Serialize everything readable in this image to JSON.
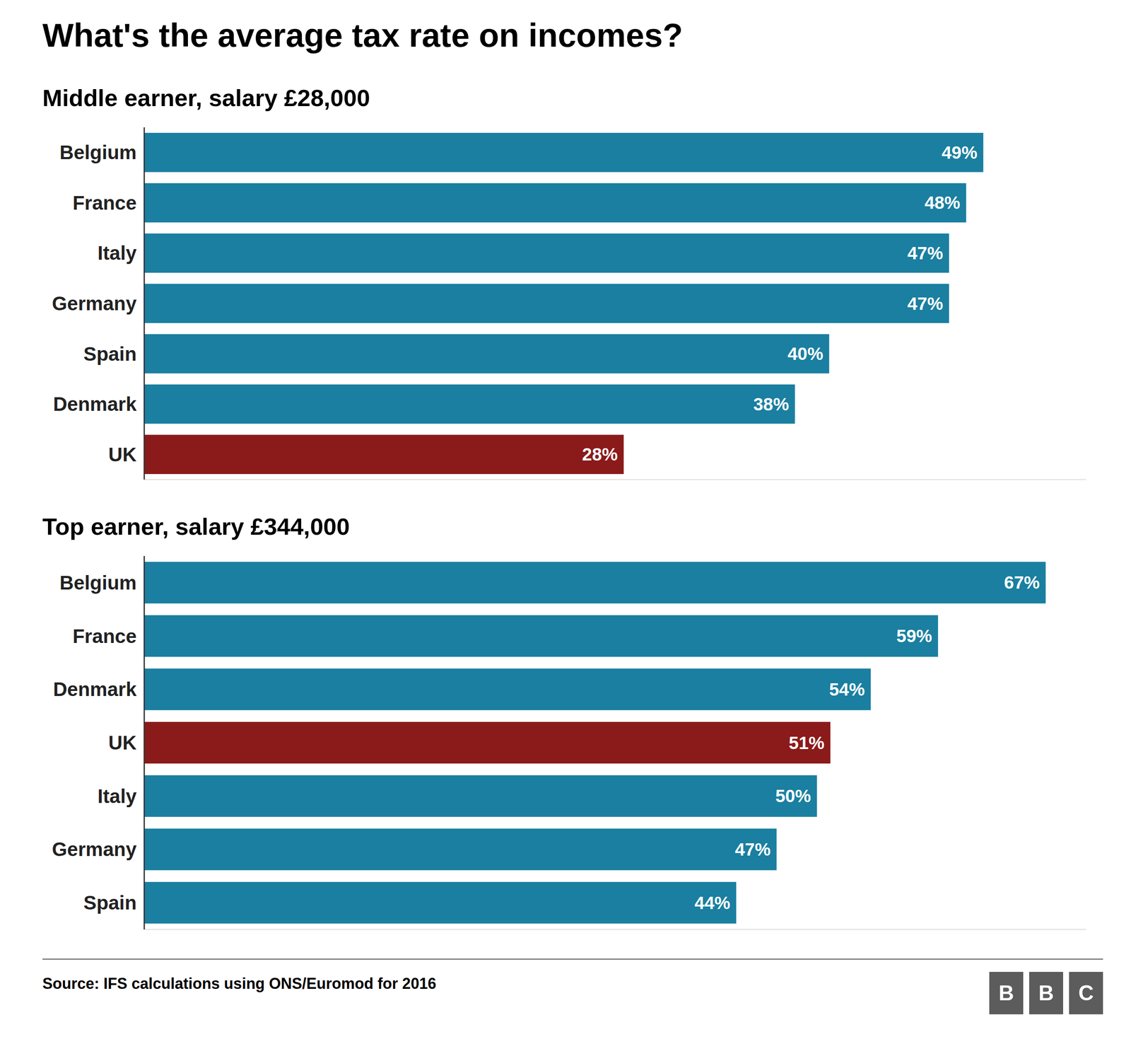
{
  "chart_data": [
    {
      "type": "bar",
      "orientation": "horizontal",
      "title": "What's the average tax rate on incomes?",
      "subtitle": "Middle earner, salary £28,000",
      "categories": [
        "Belgium",
        "France",
        "Italy",
        "Germany",
        "Spain",
        "Denmark",
        "UK"
      ],
      "values": [
        49,
        48,
        47,
        47,
        40,
        38,
        28
      ],
      "value_labels": [
        "49%",
        "48%",
        "47%",
        "47%",
        "40%",
        "38%",
        "28%"
      ],
      "colors": [
        "#1a7fa0",
        "#1a7fa0",
        "#1a7fa0",
        "#1a7fa0",
        "#1a7fa0",
        "#1a7fa0",
        "#8b1a1a"
      ],
      "xlim": [
        0,
        55
      ],
      "data_labels": true,
      "tick_labels": "y",
      "grid": false
    },
    {
      "type": "bar",
      "orientation": "horizontal",
      "subtitle": "Top earner, salary £344,000",
      "categories": [
        "Belgium",
        "France",
        "Denmark",
        "UK",
        "Italy",
        "Germany",
        "Spain"
      ],
      "values": [
        67,
        59,
        54,
        51,
        50,
        47,
        44
      ],
      "value_labels": [
        "67%",
        "59%",
        "54%",
        "51%",
        "50%",
        "47%",
        "44%"
      ],
      "colors": [
        "#1a7fa0",
        "#1a7fa0",
        "#1a7fa0",
        "#8b1a1a",
        "#1a7fa0",
        "#1a7fa0",
        "#1a7fa0"
      ],
      "xlim": [
        0,
        70
      ],
      "data_labels": true,
      "tick_labels": "y",
      "grid": false,
      "annotations": [
        "Source: IFS calculations using ONS/Euromod for 2016",
        "B",
        "B",
        "C"
      ]
    }
  ]
}
